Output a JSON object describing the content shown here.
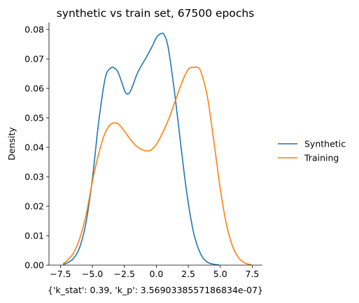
{
  "chart_data": {
    "type": "line",
    "title": "synthetic vs train set, 67500 epochs",
    "xlabel": "{'k_stat': 0.39, 'k_p': 3.5690338557186834e-07}",
    "ylabel": "Density",
    "xlim": [
      -8.4,
      8.3
    ],
    "ylim": [
      0,
      0.0824
    ],
    "xticks": [
      -7.5,
      -5.0,
      -2.5,
      0.0,
      2.5,
      5.0,
      7.5
    ],
    "xtick_labels": [
      "−7.5",
      "−5.0",
      "−2.5",
      "0.0",
      "2.5",
      "5.0",
      "7.5"
    ],
    "yticks": [
      0.0,
      0.01,
      0.02,
      0.03,
      0.04,
      0.05,
      0.06,
      0.07,
      0.08
    ],
    "ytick_labels": [
      "0.00",
      "0.01",
      "0.02",
      "0.03",
      "0.04",
      "0.05",
      "0.06",
      "0.07",
      "0.08"
    ],
    "grid": false,
    "legend_position": "right",
    "series": [
      {
        "name": "Synthetic",
        "color": "#1f77b4",
        "x": [
          -7.3,
          -7.0,
          -6.5,
          -6.0,
          -5.5,
          -5.0,
          -4.5,
          -4.0,
          -3.6,
          -3.3,
          -3.0,
          -2.7,
          -2.4,
          -2.1,
          -1.8,
          -1.5,
          -1.2,
          -0.9,
          -0.6,
          -0.3,
          0.0,
          0.3,
          0.6,
          0.9,
          1.2,
          1.5,
          1.8,
          2.1,
          2.4,
          2.7,
          3.0,
          3.5,
          4.0,
          4.5,
          4.9
        ],
        "y": [
          0.0002,
          0.0007,
          0.0022,
          0.006,
          0.0145,
          0.0295,
          0.049,
          0.0635,
          0.0668,
          0.067,
          0.0655,
          0.062,
          0.0585,
          0.0585,
          0.0615,
          0.065,
          0.0675,
          0.0697,
          0.072,
          0.0745,
          0.0772,
          0.0785,
          0.0783,
          0.0745,
          0.066,
          0.056,
          0.045,
          0.034,
          0.024,
          0.0158,
          0.0095,
          0.0035,
          0.001,
          0.0003,
          0.0001
        ]
      },
      {
        "name": "Training",
        "color": "#ff7f0e",
        "x": [
          -7.3,
          -7.0,
          -6.5,
          -6.0,
          -5.5,
          -5.0,
          -4.5,
          -4.0,
          -3.5,
          -3.0,
          -2.5,
          -2.0,
          -1.5,
          -1.0,
          -0.6,
          -0.3,
          0.0,
          0.5,
          1.0,
          1.5,
          2.0,
          2.5,
          3.0,
          3.2,
          3.5,
          4.0,
          4.5,
          5.0,
          5.5,
          6.0,
          6.5,
          7.0,
          7.4
        ],
        "y": [
          0.0005,
          0.0015,
          0.004,
          0.009,
          0.017,
          0.0285,
          0.038,
          0.045,
          0.048,
          0.048,
          0.0455,
          0.0425,
          0.0402,
          0.039,
          0.0388,
          0.0395,
          0.041,
          0.045,
          0.05,
          0.056,
          0.062,
          0.0665,
          0.0672,
          0.0672,
          0.0655,
          0.057,
          0.042,
          0.026,
          0.0135,
          0.006,
          0.0022,
          0.0006,
          0.0002
        ]
      }
    ]
  }
}
